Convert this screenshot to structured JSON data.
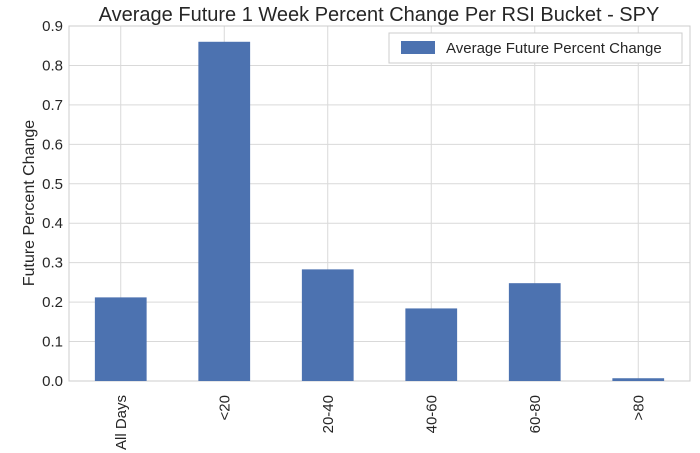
{
  "chart_data": {
    "type": "bar",
    "title": "Average Future 1 Week Percent Change Per RSI Bucket - SPY",
    "xlabel": "",
    "ylabel": "Future Percent Change",
    "categories": [
      "All Days",
      "<20",
      "20-40",
      "40-60",
      "60-80",
      ">80"
    ],
    "series": [
      {
        "name": "Average Future Percent Change",
        "values": [
          0.212,
          0.86,
          0.283,
          0.184,
          0.248,
          0.007
        ],
        "color": "#4c72b0"
      }
    ],
    "ylim": [
      0,
      0.9
    ],
    "yticks": [
      "0.0",
      "0.1",
      "0.2",
      "0.3",
      "0.4",
      "0.5",
      "0.6",
      "0.7",
      "0.8",
      "0.9"
    ],
    "grid": true,
    "legend": "top-right"
  }
}
